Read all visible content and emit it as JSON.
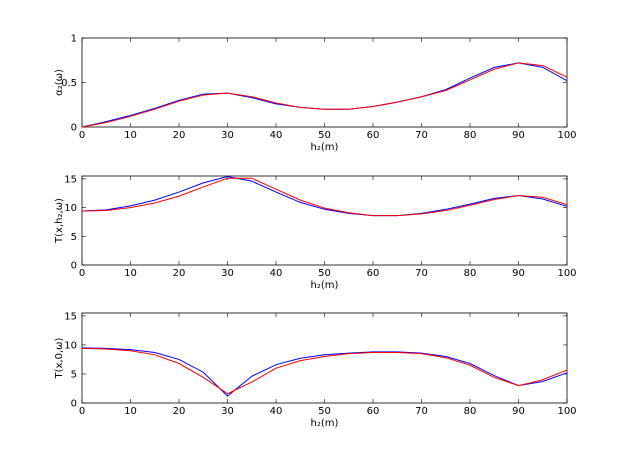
{
  "chart_data": [
    {
      "type": "line",
      "ylabel": "α₂(ω)",
      "xlabel": "h₂(m)",
      "x": [
        0,
        5,
        10,
        15,
        20,
        25,
        30,
        35,
        40,
        45,
        50,
        55,
        60,
        65,
        70,
        75,
        80,
        85,
        90,
        95,
        100
      ],
      "series": [
        {
          "color": "#0000ff",
          "values": [
            0,
            0.06,
            0.13,
            0.21,
            0.3,
            0.37,
            0.38,
            0.33,
            0.26,
            0.22,
            0.2,
            0.2,
            0.23,
            0.28,
            0.34,
            0.42,
            0.55,
            0.67,
            0.72,
            0.67,
            0.52
          ]
        },
        {
          "color": "#ff0000",
          "values": [
            0,
            0.05,
            0.12,
            0.2,
            0.29,
            0.36,
            0.38,
            0.34,
            0.27,
            0.22,
            0.2,
            0.2,
            0.23,
            0.28,
            0.34,
            0.41,
            0.53,
            0.65,
            0.72,
            0.69,
            0.56
          ]
        }
      ],
      "xlim": [
        0,
        100
      ],
      "xticks": [
        0,
        10,
        20,
        30,
        40,
        50,
        60,
        70,
        80,
        90,
        100
      ],
      "ylim": [
        0,
        1
      ],
      "yticks": [
        0,
        0.5,
        1
      ]
    },
    {
      "type": "line",
      "ylabel": "T(x,h₂,ω)",
      "xlabel": "h₂(m)",
      "x": [
        0,
        5,
        10,
        15,
        20,
        25,
        30,
        35,
        40,
        45,
        50,
        55,
        60,
        65,
        70,
        75,
        80,
        85,
        90,
        95,
        100
      ],
      "series": [
        {
          "color": "#0000ff",
          "values": [
            9.4,
            9.6,
            10.3,
            11.3,
            12.7,
            14.3,
            15.4,
            14.6,
            12.7,
            10.9,
            9.7,
            9.0,
            8.6,
            8.6,
            9.0,
            9.7,
            10.6,
            11.6,
            12.1,
            11.5,
            10.2
          ]
        },
        {
          "color": "#ff0000",
          "values": [
            9.4,
            9.5,
            10.0,
            10.8,
            12.0,
            13.6,
            15.1,
            15.1,
            13.2,
            11.3,
            9.9,
            9.1,
            8.6,
            8.6,
            8.9,
            9.5,
            10.4,
            11.4,
            12.1,
            11.8,
            10.5
          ]
        }
      ],
      "xlim": [
        0,
        100
      ],
      "xticks": [
        0,
        10,
        20,
        30,
        40,
        50,
        60,
        70,
        80,
        90,
        100
      ],
      "ylim": [
        0,
        15.5
      ],
      "yticks": [
        0,
        5,
        10,
        15
      ]
    },
    {
      "type": "line",
      "ylabel": "T(x,0,ω)",
      "xlabel": "h₂(m)",
      "x": [
        0,
        5,
        10,
        15,
        20,
        25,
        30,
        35,
        40,
        45,
        50,
        55,
        60,
        65,
        70,
        75,
        80,
        85,
        90,
        95,
        100
      ],
      "series": [
        {
          "color": "#0000ff",
          "values": [
            9.5,
            9.4,
            9.2,
            8.7,
            7.5,
            5.3,
            1.2,
            4.6,
            6.6,
            7.7,
            8.3,
            8.6,
            8.8,
            8.8,
            8.6,
            8.0,
            6.8,
            4.7,
            3.0,
            3.7,
            5.2
          ]
        },
        {
          "color": "#ff0000",
          "values": [
            9.4,
            9.3,
            9.0,
            8.3,
            6.8,
            4.4,
            1.6,
            3.6,
            6.0,
            7.3,
            8.0,
            8.5,
            8.7,
            8.7,
            8.5,
            7.8,
            6.5,
            4.4,
            3.0,
            4.0,
            5.7
          ]
        }
      ],
      "xlim": [
        0,
        100
      ],
      "xticks": [
        0,
        10,
        20,
        30,
        40,
        50,
        60,
        70,
        80,
        90,
        100
      ],
      "ylim": [
        0,
        15.5
      ],
      "yticks": [
        0,
        5,
        10,
        15
      ]
    }
  ]
}
